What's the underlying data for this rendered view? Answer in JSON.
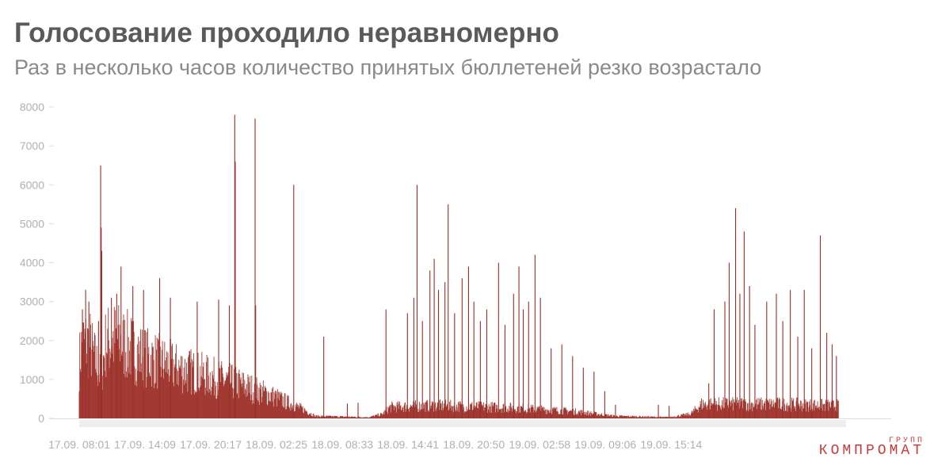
{
  "header": {
    "title": "Голосование проходило неравномерно",
    "subtitle": "Раз в несколько часов количество принятых бюллетеней резко возрастало"
  },
  "logo": {
    "small": "ГРУПП",
    "big": "КОМПРОМАТ"
  },
  "colors": {
    "series": "#9b2f28",
    "axis": "#dddddd",
    "tick": "#b0b0b0"
  },
  "chart_data": {
    "type": "bar",
    "title": "Голосование проходило неравномерно",
    "subtitle": "Раз в несколько часов количество принятых бюллетеней резко возрастало",
    "xlabel": "",
    "ylabel": "",
    "ylim": [
      0,
      8000
    ],
    "yticks": [
      0,
      1000,
      2000,
      3000,
      4000,
      5000,
      6000,
      7000,
      8000
    ],
    "ytick_labels": [
      "0",
      "1000",
      "2000",
      "3000",
      "4000",
      "5000",
      "6000",
      "7000",
      "8000"
    ],
    "xtick_labels": [
      "17.09. 08:01",
      "17.09. 14:09",
      "17.09. 20:17",
      "18.09. 02:25",
      "18.09. 08:33",
      "18.09. 14:41",
      "18.09. 20:50",
      "19.09. 02:58",
      "19.09. 09:06",
      "19.09. 15:14"
    ],
    "grid": false,
    "legend": "none",
    "envelope": [
      {
        "x": 0.0,
        "y": 2000
      },
      {
        "x": 0.3,
        "y": 2700
      },
      {
        "x": 1.0,
        "y": 2600
      },
      {
        "x": 2.0,
        "y": 1500
      },
      {
        "x": 2.5,
        "y": 2700
      },
      {
        "x": 3.5,
        "y": 2800
      },
      {
        "x": 6.0,
        "y": 2200
      },
      {
        "x": 9.0,
        "y": 1800
      },
      {
        "x": 12.0,
        "y": 1500
      },
      {
        "x": 15.0,
        "y": 1200
      },
      {
        "x": 18.0,
        "y": 800
      },
      {
        "x": 21.0,
        "y": 300
      },
      {
        "x": 22.0,
        "y": 80
      },
      {
        "x": 27.0,
        "y": 40
      },
      {
        "x": 28.3,
        "y": 150
      },
      {
        "x": 29.0,
        "y": 400
      },
      {
        "x": 33.0,
        "y": 450
      },
      {
        "x": 40.0,
        "y": 380
      },
      {
        "x": 46.0,
        "y": 250
      },
      {
        "x": 50.0,
        "y": 80
      },
      {
        "x": 55.0,
        "y": 40
      },
      {
        "x": 57.0,
        "y": 150
      },
      {
        "x": 58.0,
        "y": 500
      },
      {
        "x": 66.0,
        "y": 500
      },
      {
        "x": 70.0,
        "y": 450
      }
    ],
    "spikes": [
      {
        "x": 0.3,
        "y": 2800
      },
      {
        "x": 0.6,
        "y": 3300
      },
      {
        "x": 0.9,
        "y": 3000
      },
      {
        "x": 1.8,
        "y": 2500
      },
      {
        "x": 2.0,
        "y": 6500
      },
      {
        "x": 2.05,
        "y": 4900
      },
      {
        "x": 2.1,
        "y": 4300
      },
      {
        "x": 3.0,
        "y": 3100
      },
      {
        "x": 3.5,
        "y": 3200
      },
      {
        "x": 3.9,
        "y": 3900
      },
      {
        "x": 5.0,
        "y": 3400
      },
      {
        "x": 6.0,
        "y": 3300
      },
      {
        "x": 7.5,
        "y": 3600
      },
      {
        "x": 8.5,
        "y": 3100
      },
      {
        "x": 11.0,
        "y": 3000
      },
      {
        "x": 13.0,
        "y": 3050
      },
      {
        "x": 14.0,
        "y": 2900
      },
      {
        "x": 14.5,
        "y": 7800
      },
      {
        "x": 14.55,
        "y": 6600
      },
      {
        "x": 16.4,
        "y": 7700
      },
      {
        "x": 16.45,
        "y": 2900
      },
      {
        "x": 20.0,
        "y": 6000
      },
      {
        "x": 22.8,
        "y": 2100
      },
      {
        "x": 25.0,
        "y": 380
      },
      {
        "x": 26.0,
        "y": 400
      },
      {
        "x": 28.6,
        "y": 2800
      },
      {
        "x": 30.6,
        "y": 2700
      },
      {
        "x": 31.2,
        "y": 3100
      },
      {
        "x": 31.5,
        "y": 6000
      },
      {
        "x": 32.0,
        "y": 2500
      },
      {
        "x": 32.7,
        "y": 3800
      },
      {
        "x": 33.1,
        "y": 4100
      },
      {
        "x": 33.5,
        "y": 3300
      },
      {
        "x": 34.1,
        "y": 3500
      },
      {
        "x": 34.4,
        "y": 5500
      },
      {
        "x": 35.0,
        "y": 2700
      },
      {
        "x": 35.7,
        "y": 3600
      },
      {
        "x": 36.3,
        "y": 3900
      },
      {
        "x": 36.8,
        "y": 3000
      },
      {
        "x": 37.4,
        "y": 2500
      },
      {
        "x": 38.0,
        "y": 2800
      },
      {
        "x": 39.1,
        "y": 4000
      },
      {
        "x": 39.7,
        "y": 2400
      },
      {
        "x": 40.5,
        "y": 3200
      },
      {
        "x": 41.0,
        "y": 3900
      },
      {
        "x": 41.4,
        "y": 2800
      },
      {
        "x": 41.9,
        "y": 3000
      },
      {
        "x": 42.5,
        "y": 4200
      },
      {
        "x": 43.0,
        "y": 3100
      },
      {
        "x": 44.0,
        "y": 1800
      },
      {
        "x": 45.0,
        "y": 1900
      },
      {
        "x": 46.0,
        "y": 1600
      },
      {
        "x": 47.0,
        "y": 1300
      },
      {
        "x": 48.0,
        "y": 1200
      },
      {
        "x": 49.0,
        "y": 700
      },
      {
        "x": 50.0,
        "y": 350
      },
      {
        "x": 54.0,
        "y": 350
      },
      {
        "x": 55.0,
        "y": 320
      },
      {
        "x": 58.7,
        "y": 900
      },
      {
        "x": 59.2,
        "y": 2800
      },
      {
        "x": 60.2,
        "y": 3000
      },
      {
        "x": 60.6,
        "y": 4000
      },
      {
        "x": 61.2,
        "y": 5400
      },
      {
        "x": 61.6,
        "y": 3200
      },
      {
        "x": 62.0,
        "y": 4800
      },
      {
        "x": 62.5,
        "y": 3400
      },
      {
        "x": 63.0,
        "y": 2400
      },
      {
        "x": 64.1,
        "y": 3000
      },
      {
        "x": 65.0,
        "y": 3200
      },
      {
        "x": 65.6,
        "y": 2500
      },
      {
        "x": 66.3,
        "y": 3300
      },
      {
        "x": 67.0,
        "y": 2100
      },
      {
        "x": 67.6,
        "y": 3300
      },
      {
        "x": 68.3,
        "y": 1800
      },
      {
        "x": 69.1,
        "y": 4700
      },
      {
        "x": 69.7,
        "y": 2200
      },
      {
        "x": 70.2,
        "y": 1900
      },
      {
        "x": 70.6,
        "y": 1600
      }
    ]
  }
}
